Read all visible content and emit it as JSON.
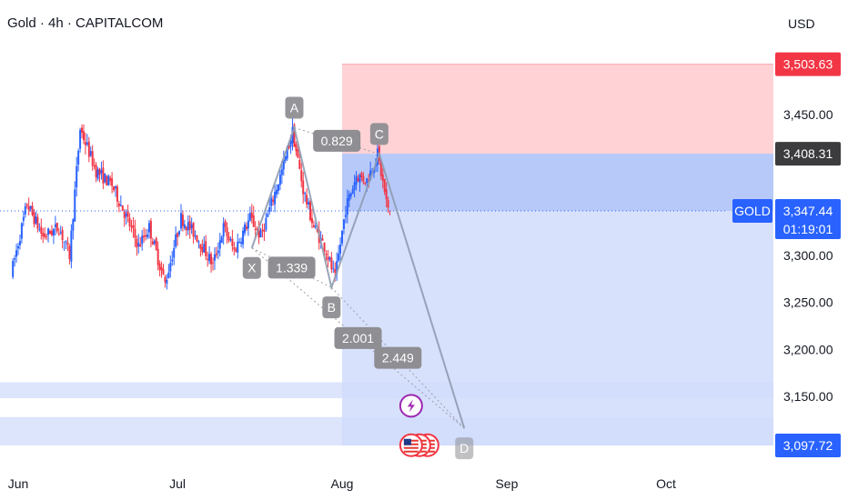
{
  "header": {
    "title": "Gold · 4h · CAPITALCOM",
    "currency": "USD"
  },
  "colors": {
    "up": "#2962ff",
    "down": "#f23645",
    "stop_zone": "#ffcdd2",
    "target_zone": "#d1dcfb",
    "label_gray": "#8e8e93"
  },
  "price_axis": {
    "ticks": [
      "3,450.00",
      "3,300.00",
      "3,250.00",
      "3,200.00",
      "3,150.00"
    ],
    "tick_values": [
      3450,
      3300,
      3250,
      3200,
      3150
    ],
    "badges": {
      "stop": "3,503.63",
      "entry": "3,408.31",
      "current": "3,347.44",
      "countdown": "01:19:01",
      "target": "3,097.72",
      "symbol": "GOLD"
    }
  },
  "time_axis": {
    "labels": [
      "Jun",
      "Jul",
      "Aug",
      "Sep",
      "Oct"
    ],
    "dates": [
      "2025-06-01",
      "2025-07-01",
      "2025-08-01",
      "2025-09-01",
      "2025-10-01"
    ]
  },
  "chart_data": {
    "type": "candlestick",
    "symbol": "Gold",
    "timeframe": "4h",
    "source": "CAPITALCOM",
    "ylim": [
      3080,
      3520
    ],
    "xlim": [
      "2025-05-31",
      "2025-10-20"
    ],
    "current_price": 3347.44,
    "price_path": [
      {
        "date": "2025-05-31",
        "price": 3280
      },
      {
        "date": "2025-06-03",
        "price": 3355
      },
      {
        "date": "2025-06-06",
        "price": 3320
      },
      {
        "date": "2025-06-09",
        "price": 3330
      },
      {
        "date": "2025-06-11",
        "price": 3300
      },
      {
        "date": "2025-06-13",
        "price": 3435
      },
      {
        "date": "2025-06-16",
        "price": 3390
      },
      {
        "date": "2025-06-19",
        "price": 3375
      },
      {
        "date": "2025-06-21",
        "price": 3350
      },
      {
        "date": "2025-06-24",
        "price": 3310
      },
      {
        "date": "2025-06-26",
        "price": 3330
      },
      {
        "date": "2025-06-29",
        "price": 3270
      },
      {
        "date": "2025-07-02",
        "price": 3340
      },
      {
        "date": "2025-07-05",
        "price": 3320
      },
      {
        "date": "2025-07-08",
        "price": 3290
      },
      {
        "date": "2025-07-10",
        "price": 3330
      },
      {
        "date": "2025-07-12",
        "price": 3305
      },
      {
        "date": "2025-07-15",
        "price": 3340
      },
      {
        "date": "2025-07-17",
        "price": 3320
      },
      {
        "date": "2025-07-19",
        "price": 3355
      },
      {
        "date": "2025-07-21",
        "price": 3390
      },
      {
        "date": "2025-07-23",
        "price": 3432
      },
      {
        "date": "2025-07-25",
        "price": 3370
      },
      {
        "date": "2025-07-27",
        "price": 3330
      },
      {
        "date": "2025-07-29",
        "price": 3310
      },
      {
        "date": "2025-07-31",
        "price": 3275
      },
      {
        "date": "2025-08-02",
        "price": 3350
      },
      {
        "date": "2025-08-04",
        "price": 3385
      },
      {
        "date": "2025-08-06",
        "price": 3380
      },
      {
        "date": "2025-08-08",
        "price": 3408
      },
      {
        "date": "2025-08-10",
        "price": 3347
      }
    ],
    "harmonic_pattern": {
      "points": [
        {
          "label": "X",
          "date": "2025-07-15",
          "price": 3308
        },
        {
          "label": "A",
          "date": "2025-07-23",
          "price": 3436
        },
        {
          "label": "B",
          "date": "2025-07-30",
          "price": 3266
        },
        {
          "label": "C",
          "date": "2025-08-08",
          "price": 3408
        },
        {
          "label": "D",
          "date": "2025-08-24",
          "price": 3116
        }
      ],
      "ratios": [
        {
          "value": "0.829",
          "between": "A-C"
        },
        {
          "value": "1.339",
          "between": "X-B"
        },
        {
          "value": "2.449",
          "between": "B-D"
        },
        {
          "value": "2.001",
          "between": "X-D"
        }
      ]
    },
    "position": {
      "start_date": "2025-08-01",
      "end_date": "2025-10-20",
      "entry": 3408.31,
      "stop": 3503.63,
      "target": 3097.72
    },
    "support_bands": [
      [
        3148,
        3165
      ],
      [
        3097.72,
        3128
      ]
    ],
    "event_markers": [
      {
        "date": "2025-08-14",
        "price": 3140,
        "icon": "lightning-icon"
      }
    ],
    "flag_markers": [
      {
        "date": "2025-08-14",
        "price": 3098,
        "count": 3,
        "icon": "us-flag-icon"
      }
    ]
  }
}
